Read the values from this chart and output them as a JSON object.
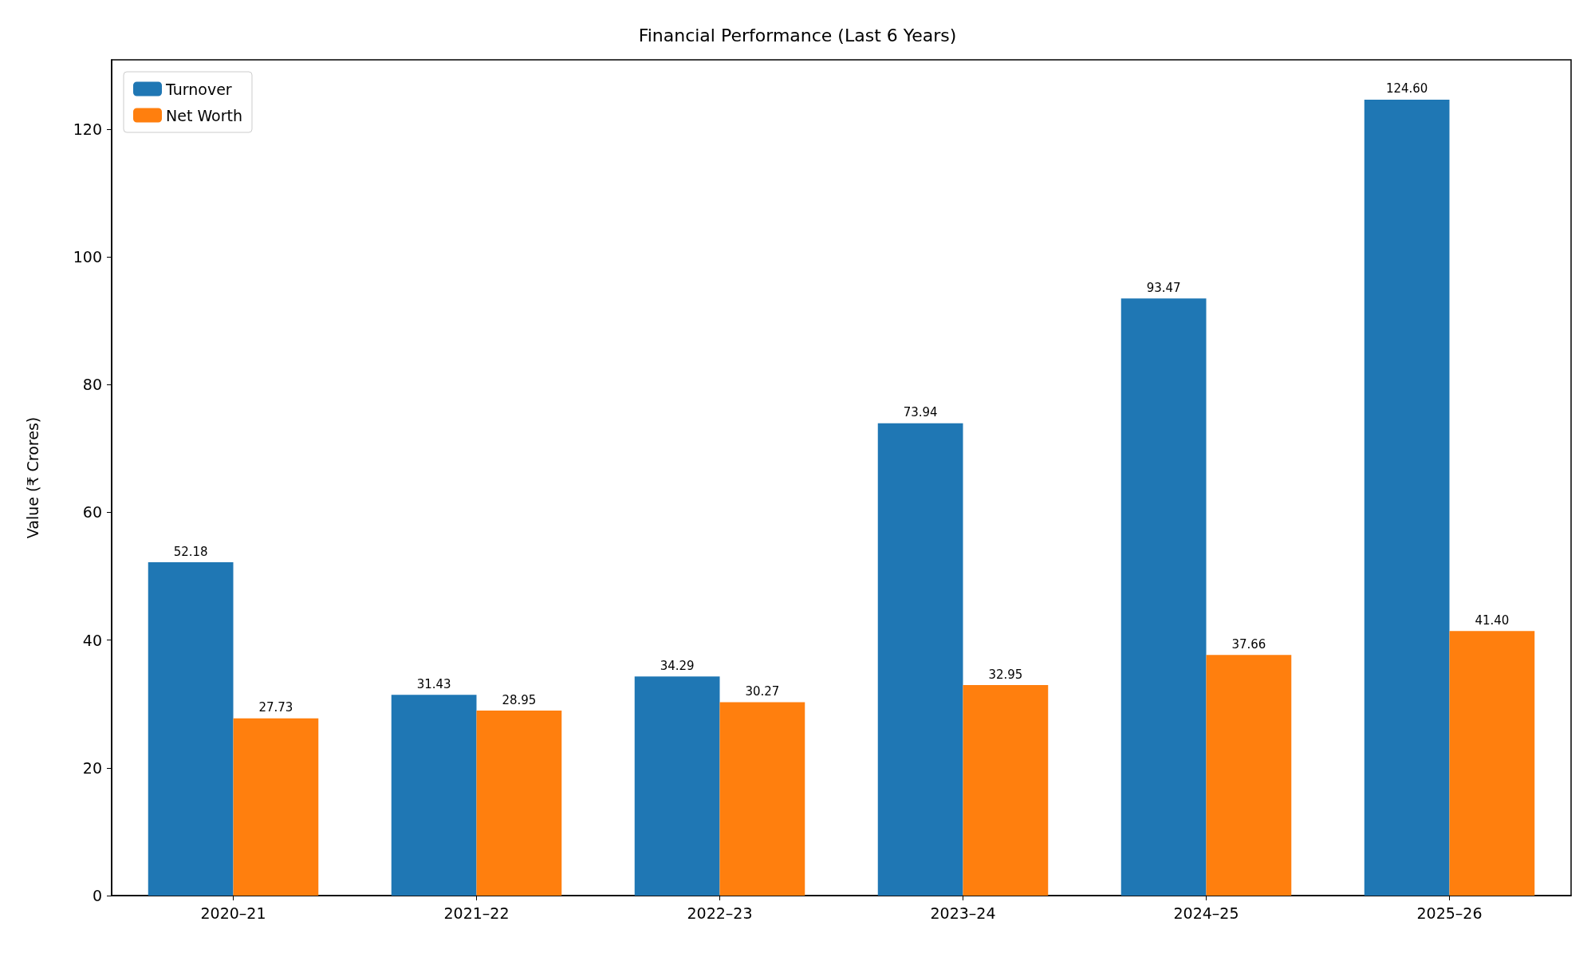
{
  "chart_data": {
    "type": "bar",
    "title": "Financial Performance (Last 6 Years)",
    "ylabel": "Value (₹ Crores)",
    "categories": [
      "2020–21",
      "2021–22",
      "2022–23",
      "2023–24",
      "2024–25",
      "2025–26"
    ],
    "series": [
      {
        "name": "Turnover",
        "color": "#1f77b4",
        "values": [
          52.18,
          31.43,
          34.29,
          73.94,
          93.47,
          124.6
        ],
        "value_labels": [
          "52.18",
          "31.43",
          "34.29",
          "73.94",
          "93.47",
          "124.60"
        ]
      },
      {
        "name": "Net Worth",
        "color": "#ff7f0e",
        "values": [
          27.73,
          28.95,
          30.27,
          32.95,
          37.66,
          41.4
        ],
        "value_labels": [
          "27.73",
          "28.95",
          "30.27",
          "32.95",
          "37.66",
          "41.40"
        ]
      }
    ],
    "ylim": [
      0,
      130.83
    ],
    "yticks": [
      0,
      20,
      40,
      60,
      80,
      100,
      120
    ],
    "grid": false,
    "legend": "top left"
  }
}
